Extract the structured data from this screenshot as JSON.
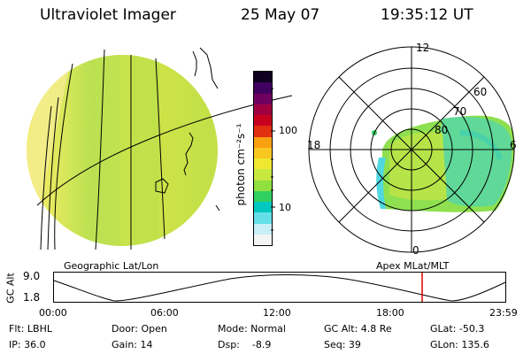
{
  "header": {
    "instrument": "Ultraviolet Imager",
    "date": "25 May 07",
    "time": "19:35:12 UT"
  },
  "colorbar": {
    "unit_label": "photon cm⁻²s⁻¹",
    "tick_100": "100",
    "tick_10": "10",
    "colors": [
      "#f4f4f4",
      "#c8eef8",
      "#66e0e8",
      "#00c8c0",
      "#30d060",
      "#90e040",
      "#c8e840",
      "#f0e830",
      "#f8c820",
      "#f8a010",
      "#e03010",
      "#c80020",
      "#a00040",
      "#700060",
      "#400060",
      "#100020"
    ]
  },
  "earth_view": {
    "label": "Geographic Lat/Lon"
  },
  "polar_view": {
    "label": "Apex MLat/MLT",
    "mlt_12": "12",
    "mlt_18": "18",
    "mlt_6": "6",
    "mlt_0": "0",
    "lat_60": "60",
    "lat_70": "70",
    "lat_80": "80"
  },
  "alt_plot": {
    "ylabel": "GC Alt",
    "y_top": "9.0",
    "y_bottom": "1.8",
    "times": [
      "00:00",
      "06:00",
      "12:00",
      "18:00",
      "23:59"
    ],
    "marker_color": "#e00000"
  },
  "footer": {
    "filter": "Flt: LBHL",
    "ip": "IP: 36.0",
    "door": "Door: Open",
    "gain": "Gain: 14",
    "mode": "Mode: Normal",
    "dsp": "Dsp:    -8.9",
    "gc_alt": "GC Alt: 4.8 Re",
    "seq": "Seq: 39",
    "glat": "GLat: -50.3",
    "glon": "GLon: 135.6"
  }
}
